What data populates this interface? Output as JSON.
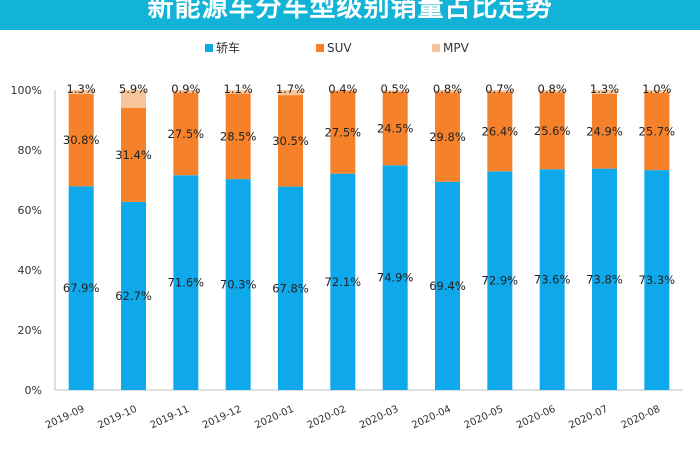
{
  "chart_data": {
    "type": "bar",
    "stacked": true,
    "title": "新能源车分车型级别销量占比走势",
    "categories": [
      "2019-09",
      "2019-10",
      "2019-11",
      "2019-12",
      "2020-01",
      "2020-02",
      "2020-03",
      "2020-04",
      "2020-05",
      "2020-06",
      "2020-07",
      "2020-08"
    ],
    "series": [
      {
        "name": "轿车",
        "color": "#0fa8ea",
        "values": [
          67.9,
          62.7,
          71.6,
          70.3,
          67.8,
          72.1,
          74.9,
          69.4,
          72.9,
          73.6,
          73.8,
          73.3
        ],
        "labels": [
          "67.9%",
          "62.7%",
          "71.6%",
          "70.3%",
          "67.8%",
          "72.1%",
          "74.9%",
          "69.4%",
          "72.9%",
          "73.6%",
          "73.8%",
          "73.3%"
        ]
      },
      {
        "name": "SUV",
        "color": "#f5822a",
        "values": [
          30.8,
          31.4,
          27.5,
          28.5,
          30.5,
          27.5,
          24.5,
          29.8,
          26.4,
          25.6,
          24.9,
          25.7
        ],
        "labels": [
          "30.8%",
          "31.4%",
          "27.5%",
          "28.5%",
          "30.5%",
          "27.5%",
          "24.5%",
          "29.8%",
          "26.4%",
          "25.6%",
          "24.9%",
          "25.7%"
        ]
      },
      {
        "name": "MPV",
        "color": "#f8c49a",
        "values": [
          1.3,
          5.9,
          0.9,
          1.1,
          1.7,
          0.4,
          0.5,
          0.8,
          0.7,
          0.8,
          1.3,
          1.0
        ],
        "labels": [
          "1.3%",
          "5.9%",
          "0.9%",
          "1.1%",
          "1.7%",
          "0.4%",
          "0.5%",
          "0.8%",
          "0.7%",
          "0.8%",
          "1.3%",
          "1.0%"
        ]
      }
    ],
    "ylim": [
      0,
      100
    ],
    "yticks": [
      "0%",
      "20%",
      "40%",
      "60%",
      "80%",
      "100%"
    ],
    "grid": false,
    "legend": "top-center"
  }
}
